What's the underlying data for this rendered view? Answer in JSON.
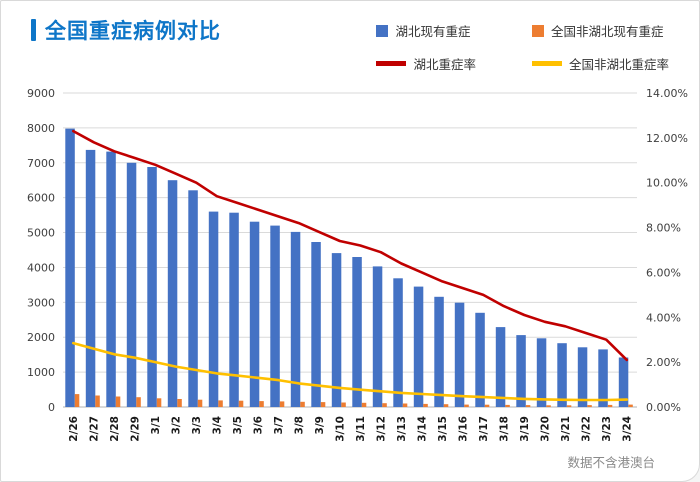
{
  "header": {
    "title": "全国重症病例对比",
    "accent_color": "#0E76C8"
  },
  "footer": {
    "note": "数据不含港澳台"
  },
  "chart_data": {
    "type": "combo",
    "title": "全国重症病例对比",
    "grid": true,
    "legend_position": "top",
    "categories": [
      "2/26",
      "2/27",
      "2/28",
      "2/29",
      "3/1",
      "3/2",
      "3/3",
      "3/4",
      "3/5",
      "3/6",
      "3/7",
      "3/8",
      "3/9",
      "3/10",
      "3/11",
      "3/12",
      "3/13",
      "3/14",
      "3/15",
      "3/16",
      "3/17",
      "3/18",
      "3/19",
      "3/20",
      "3/21",
      "3/22",
      "3/23",
      "3/24"
    ],
    "series": [
      {
        "name": "湖北现有重症",
        "type": "bar",
        "axis": "left",
        "color": "#4472C4",
        "values": [
          7980,
          7370,
          7320,
          7000,
          6880,
          6500,
          6210,
          5600,
          5570,
          5310,
          5200,
          5020,
          4730,
          4410,
          4300,
          4030,
          3690,
          3450,
          3160,
          2990,
          2700,
          2290,
          2060,
          1970,
          1830,
          1710,
          1650,
          1420
        ]
      },
      {
        "name": "全国非湖北现有重症",
        "type": "bar",
        "axis": "left",
        "color": "#ED7D31",
        "values": [
          370,
          330,
          300,
          280,
          250,
          230,
          210,
          190,
          180,
          170,
          160,
          150,
          140,
          130,
          120,
          110,
          100,
          90,
          80,
          70,
          65,
          60,
          55,
          50,
          50,
          55,
          60,
          70
        ]
      },
      {
        "name": "湖北重症率",
        "type": "line",
        "axis": "right",
        "color": "#C00000",
        "values": [
          12.3,
          11.8,
          11.4,
          11.1,
          10.8,
          10.4,
          10.0,
          9.4,
          9.1,
          8.8,
          8.5,
          8.2,
          7.8,
          7.4,
          7.2,
          6.9,
          6.4,
          6.0,
          5.6,
          5.3,
          5.0,
          4.5,
          4.1,
          3.8,
          3.6,
          3.3,
          3.0,
          2.1
        ]
      },
      {
        "name": "全国非湖北重症率",
        "type": "line",
        "axis": "right",
        "color": "#FFC000",
        "values": [
          2.85,
          2.6,
          2.35,
          2.2,
          2.0,
          1.8,
          1.65,
          1.5,
          1.4,
          1.3,
          1.2,
          1.05,
          0.95,
          0.85,
          0.77,
          0.7,
          0.63,
          0.58,
          0.53,
          0.48,
          0.44,
          0.4,
          0.36,
          0.34,
          0.32,
          0.31,
          0.31,
          0.33
        ]
      }
    ],
    "left_axis": {
      "min": 0,
      "max": 9000,
      "step": 1000,
      "ticks": [
        "0",
        "1000",
        "2000",
        "3000",
        "4000",
        "5000",
        "6000",
        "7000",
        "8000",
        "9000"
      ]
    },
    "right_axis": {
      "min": 0,
      "max": 14,
      "step": 2,
      "ticks": [
        "0.00%",
        "2.00%",
        "4.00%",
        "6.00%",
        "8.00%",
        "10.00%",
        "12.00%",
        "14.00%"
      ]
    }
  }
}
